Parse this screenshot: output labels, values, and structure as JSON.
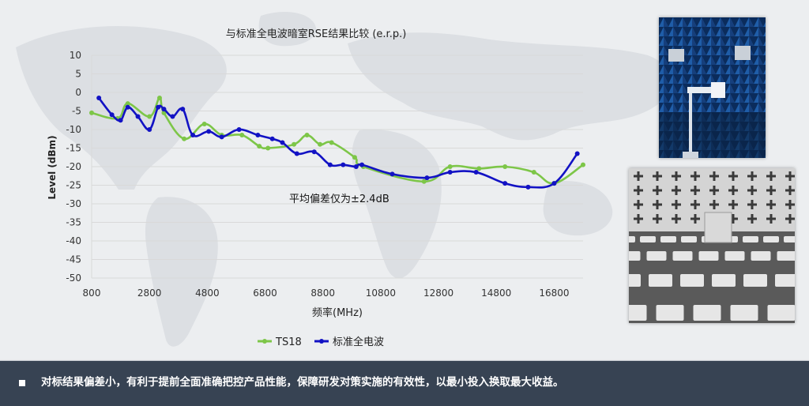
{
  "colors": {
    "ts18": "#7dc648",
    "standard": "#1212c4",
    "footer_bg": "#374353",
    "grid": "#d9d9d9"
  },
  "chart_data": {
    "type": "line",
    "title": "与标准全电波暗室RSE结果比较 (e.r.p.)",
    "xlabel": "频率(MHz)",
    "ylabel": "Level (dBm)",
    "xlim": [
      800,
      17800
    ],
    "ylim": [
      -50,
      10
    ],
    "xticks": [
      800,
      2800,
      4800,
      6800,
      8800,
      10800,
      12800,
      14800,
      16800
    ],
    "yticks": [
      10,
      5,
      0,
      -5,
      -10,
      -15,
      -20,
      -25,
      -30,
      -35,
      -40,
      -45,
      -50
    ],
    "grid": "horizontal",
    "legend": "bottom",
    "annotation": "平均偏差仅为±2.4dB",
    "series": [
      {
        "name": "TS18",
        "color": "#7dc648",
        "x": [
          800,
          1700,
          2050,
          2800,
          3150,
          3300,
          4000,
          4700,
          5300,
          6000,
          6600,
          6900,
          7800,
          8250,
          8700,
          9100,
          9900,
          10200,
          12300,
          13200,
          14200,
          15100,
          16100,
          16800,
          17800
        ],
        "y": [
          -5.5,
          -7,
          -3,
          -6.5,
          -1.5,
          -5.5,
          -12.5,
          -8.5,
          -11.5,
          -11.5,
          -14.5,
          -15,
          -14,
          -11.5,
          -14,
          -13.5,
          -17.5,
          -20,
          -24,
          -20,
          -20.5,
          -20,
          -21.5,
          -24.5,
          -19.5
        ]
      },
      {
        "name": "标准全电波",
        "color": "#1212c4",
        "x": [
          1050,
          1500,
          1800,
          2050,
          2400,
          2800,
          3100,
          3300,
          3600,
          3950,
          4300,
          4850,
          5300,
          5900,
          6550,
          7050,
          7400,
          7900,
          8500,
          9050,
          9500,
          9950,
          10150,
          11200,
          12400,
          13200,
          14100,
          15100,
          15900,
          16800,
          17600
        ],
        "y": [
          -1.5,
          -6,
          -7.5,
          -4,
          -6.5,
          -10,
          -4,
          -4.5,
          -6.5,
          -4.5,
          -11.5,
          -10.5,
          -12,
          -10,
          -11.5,
          -12.5,
          -13.5,
          -16.5,
          -16,
          -19.5,
          -19.5,
          -20,
          -19.5,
          -22,
          -23,
          -21.5,
          -21.5,
          -24.5,
          -25.5,
          -24.5,
          -16.5
        ]
      }
    ]
  },
  "footer": {
    "text": "对标结果偏差小，有利于提前全面准确把控产品性能，保障研发对策实施的有效性，以最小投入换取最大收益。"
  },
  "photos": [
    {
      "name": "anechoic-chamber-photo",
      "icon": "pyramid-absorber-chamber"
    },
    {
      "name": "shielded-room-photo",
      "icon": "ferrite-tile-room"
    }
  ]
}
